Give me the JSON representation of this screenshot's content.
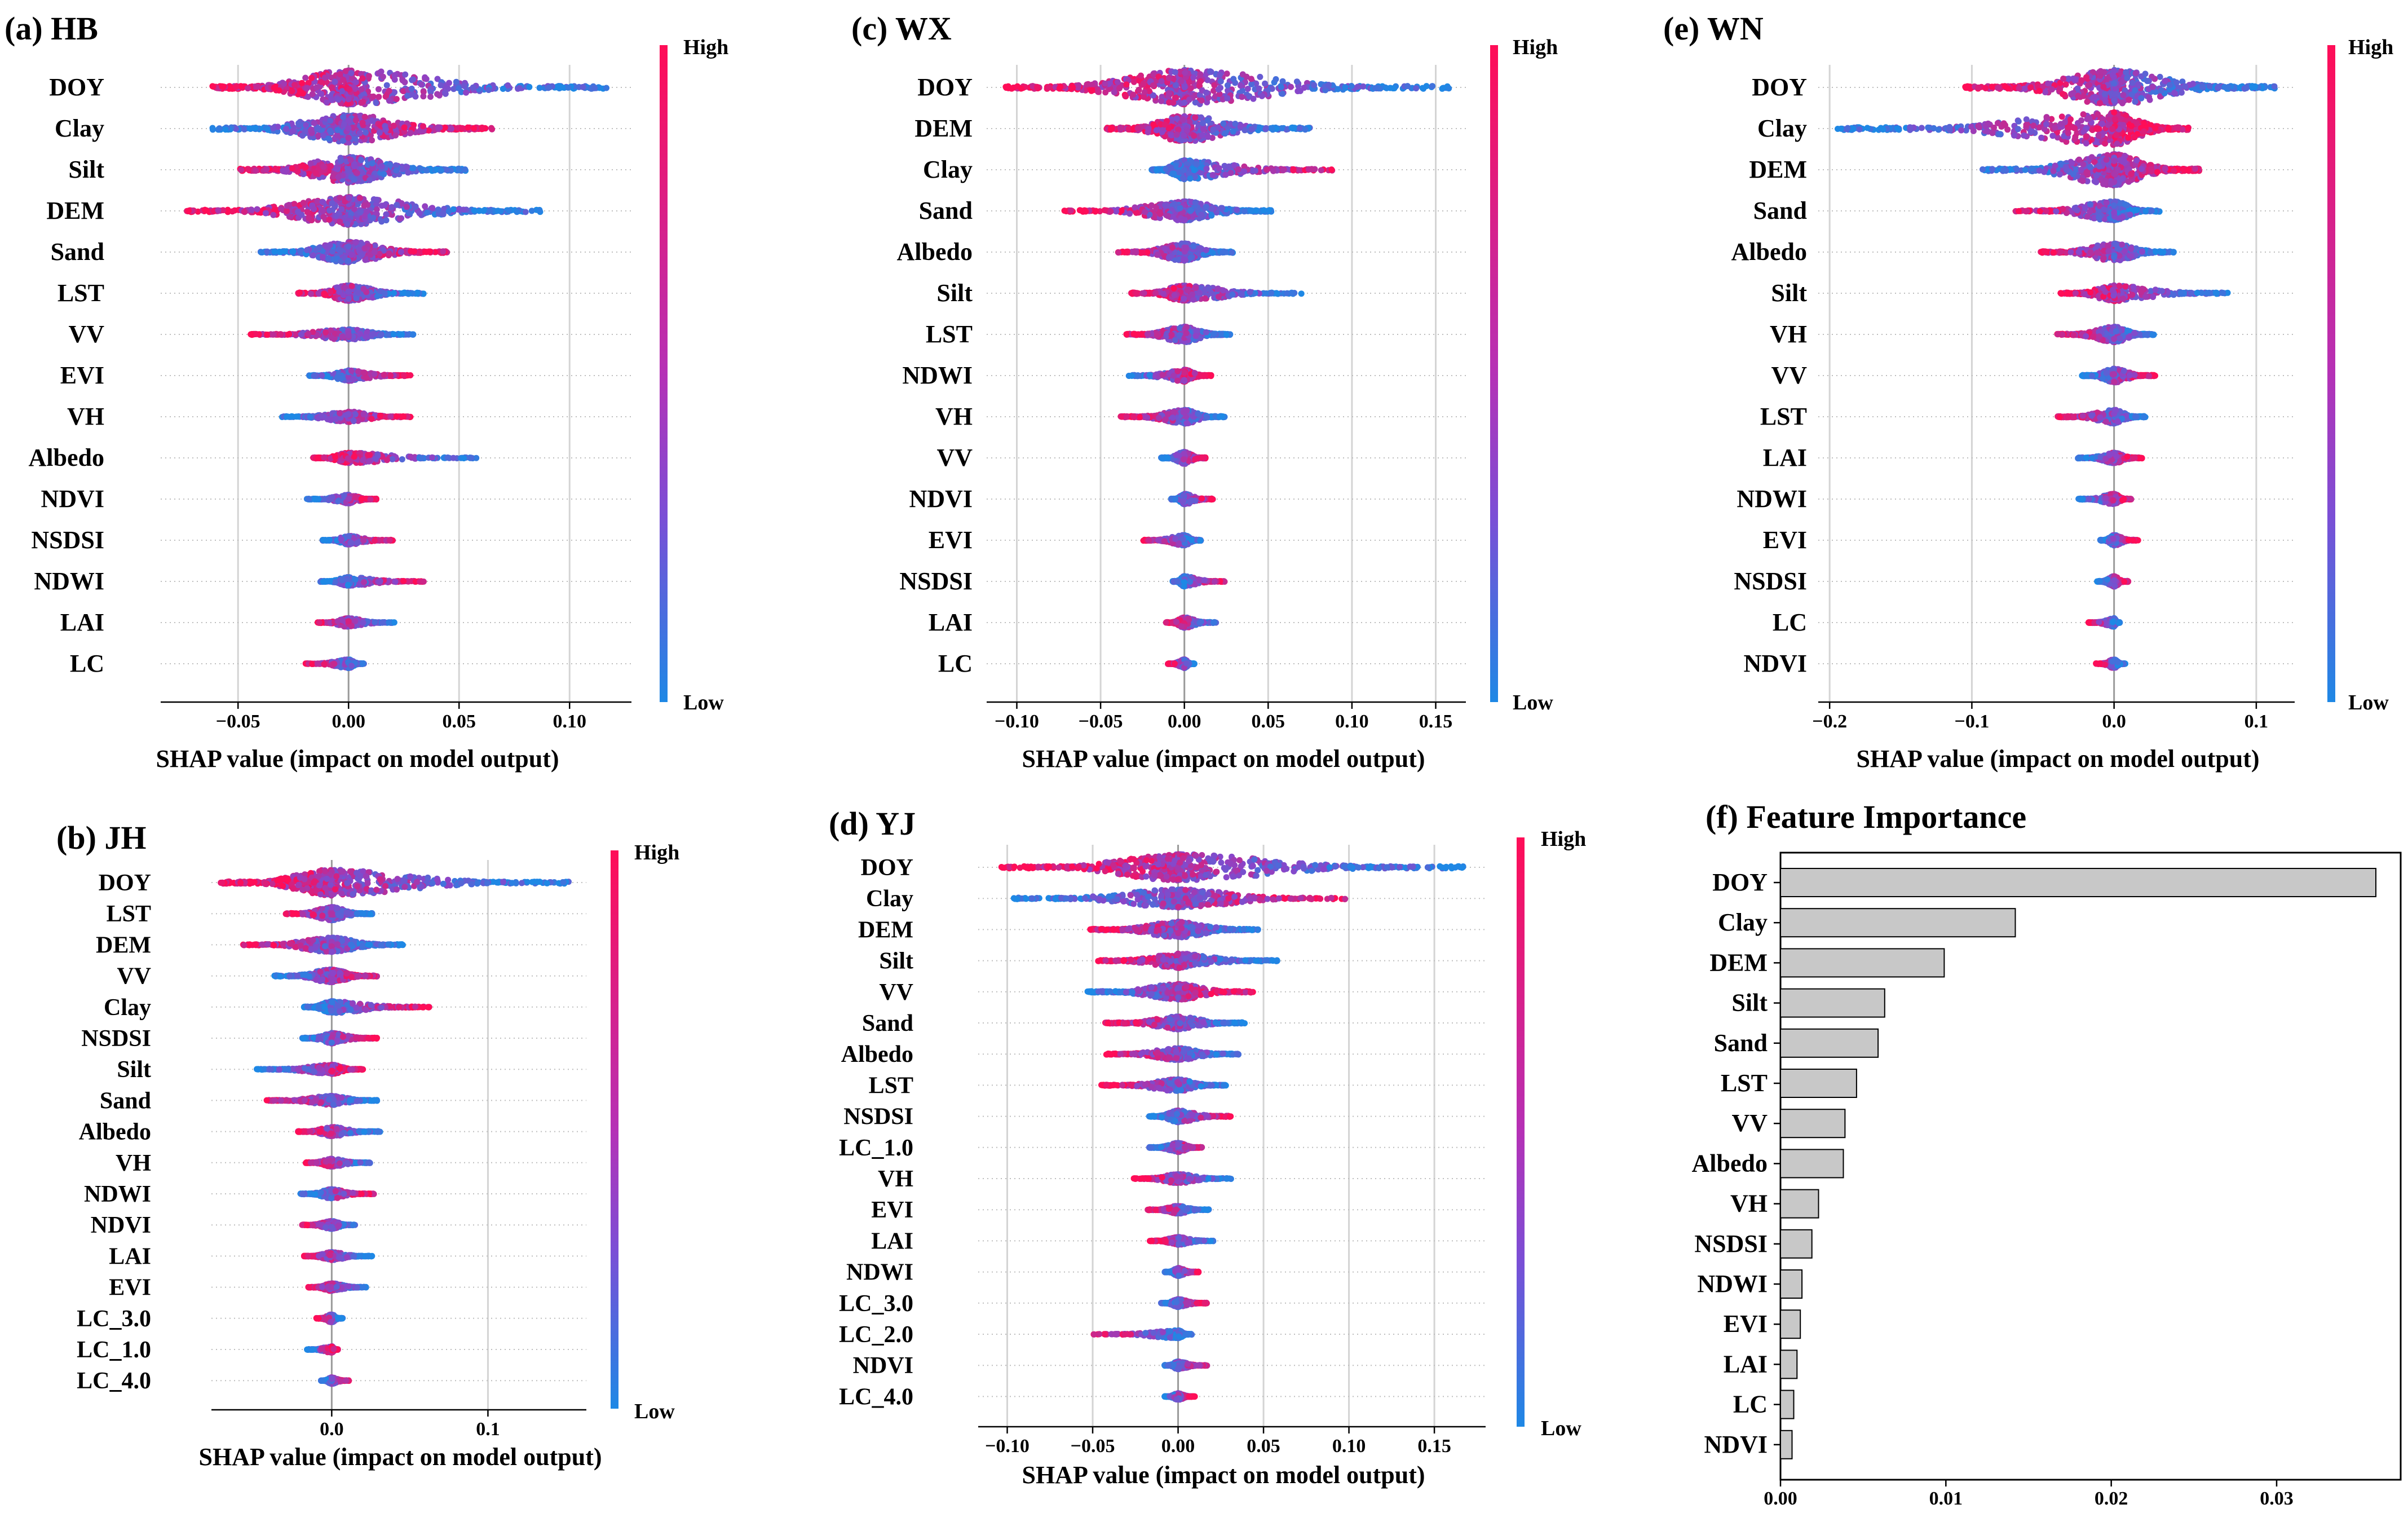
{
  "colors": {
    "high": "#ff0d57",
    "low": "#1e88e5",
    "mid": "#8a45c9",
    "bar": "#c8c8c8"
  },
  "colorbar_labels": {
    "high": "High",
    "low": "Low"
  },
  "xlabel": "SHAP value (impact on model output)",
  "chart_data": [
    {
      "type": "scatter",
      "panel": "(a) HB",
      "title": "(a) HB",
      "xlabel": "SHAP value (impact on model output)",
      "xlim": [
        -0.085,
        0.128
      ],
      "xticks": [
        -0.05,
        0.0,
        0.05,
        0.1
      ],
      "xtick_labels": [
        "−0.05",
        "0.00",
        "0.05",
        "0.10"
      ],
      "features": [
        {
          "name": "DOY",
          "min": -0.063,
          "max": 0.118,
          "width": 1.0,
          "lowSide": "right"
        },
        {
          "name": "Clay",
          "min": -0.062,
          "max": 0.065,
          "width": 0.8,
          "lowSide": "left"
        },
        {
          "name": "Silt",
          "min": -0.05,
          "max": 0.054,
          "width": 0.75,
          "lowSide": "right"
        },
        {
          "name": "DEM",
          "min": -0.075,
          "max": 0.087,
          "width": 0.8,
          "lowSide": "right"
        },
        {
          "name": "Sand",
          "min": -0.04,
          "max": 0.045,
          "width": 0.6,
          "lowSide": "left"
        },
        {
          "name": "LST",
          "min": -0.023,
          "max": 0.034,
          "width": 0.45,
          "lowSide": "right"
        },
        {
          "name": "VV",
          "min": -0.045,
          "max": 0.03,
          "width": 0.3,
          "lowSide": "right"
        },
        {
          "name": "EVI",
          "min": -0.018,
          "max": 0.028,
          "width": 0.3,
          "lowSide": "left"
        },
        {
          "name": "VH",
          "min": -0.031,
          "max": 0.028,
          "width": 0.3,
          "lowSide": "left"
        },
        {
          "name": "Albedo",
          "min": -0.016,
          "max": 0.058,
          "width": 0.3,
          "lowSide": "right"
        },
        {
          "name": "NDVI",
          "min": -0.019,
          "max": 0.013,
          "width": 0.25,
          "lowSide": "left"
        },
        {
          "name": "NSDSI",
          "min": -0.012,
          "max": 0.02,
          "width": 0.25,
          "lowSide": "left"
        },
        {
          "name": "NDWI",
          "min": -0.013,
          "max": 0.034,
          "width": 0.25,
          "lowSide": "left"
        },
        {
          "name": "LAI",
          "min": -0.014,
          "max": 0.021,
          "width": 0.25,
          "lowSide": "right"
        },
        {
          "name": "LC",
          "min": -0.02,
          "max": 0.007,
          "width": 0.25,
          "lowSide": "right"
        }
      ]
    },
    {
      "type": "scatter",
      "panel": "(c) WX",
      "title": "(c) WX",
      "xlabel": "SHAP value (impact on model output)",
      "xlim": [
        -0.118,
        0.168
      ],
      "xticks": [
        -0.1,
        -0.05,
        0.0,
        0.05,
        0.1,
        0.15
      ],
      "xtick_labels": [
        "−0.10",
        "−0.05",
        "0.00",
        "0.05",
        "0.10",
        "0.15"
      ],
      "features": [
        {
          "name": "DOY",
          "min": -0.107,
          "max": 0.158,
          "width": 1.0,
          "lowSide": "right"
        },
        {
          "name": "DEM",
          "min": -0.047,
          "max": 0.075,
          "width": 0.75,
          "lowSide": "right"
        },
        {
          "name": "Clay",
          "min": -0.02,
          "max": 0.09,
          "width": 0.55,
          "lowSide": "left"
        },
        {
          "name": "Sand",
          "min": -0.072,
          "max": 0.052,
          "width": 0.55,
          "lowSide": "right"
        },
        {
          "name": "Albedo",
          "min": -0.04,
          "max": 0.029,
          "width": 0.5,
          "lowSide": "right"
        },
        {
          "name": "Silt",
          "min": -0.032,
          "max": 0.07,
          "width": 0.45,
          "lowSide": "right"
        },
        {
          "name": "LST",
          "min": -0.035,
          "max": 0.028,
          "width": 0.45,
          "lowSide": "right"
        },
        {
          "name": "NDWI",
          "min": -0.034,
          "max": 0.016,
          "width": 0.35,
          "lowSide": "left"
        },
        {
          "name": "VH",
          "min": -0.038,
          "max": 0.024,
          "width": 0.4,
          "lowSide": "right"
        },
        {
          "name": "VV",
          "min": -0.014,
          "max": 0.013,
          "width": 0.35,
          "lowSide": "left"
        },
        {
          "name": "NDVI",
          "min": -0.008,
          "max": 0.017,
          "width": 0.3,
          "lowSide": "left"
        },
        {
          "name": "EVI",
          "min": -0.025,
          "max": 0.01,
          "width": 0.3,
          "lowSide": "right"
        },
        {
          "name": "NSDSI",
          "min": -0.007,
          "max": 0.024,
          "width": 0.3,
          "lowSide": "left"
        },
        {
          "name": "LAI",
          "min": -0.011,
          "max": 0.019,
          "width": 0.3,
          "lowSide": "right"
        },
        {
          "name": "LC",
          "min": -0.01,
          "max": 0.006,
          "width": 0.25,
          "lowSide": "right"
        }
      ]
    },
    {
      "type": "scatter",
      "panel": "(e) WN",
      "title": "(e) WN",
      "xlabel": "SHAP value (impact on model output)",
      "xlim": [
        -0.208,
        0.127
      ],
      "xticks": [
        -0.2,
        -0.1,
        0.0,
        0.1
      ],
      "xtick_labels": [
        "−0.2",
        "−0.1",
        "0.0",
        "0.1"
      ],
      "features": [
        {
          "name": "DOY",
          "min": -0.105,
          "max": 0.113,
          "width": 1.0,
          "lowSide": "right"
        },
        {
          "name": "Clay",
          "min": -0.197,
          "max": 0.053,
          "width": 0.95,
          "lowSide": "left"
        },
        {
          "name": "DEM",
          "min": -0.093,
          "max": 0.06,
          "width": 0.9,
          "lowSide": "left"
        },
        {
          "name": "Sand",
          "min": -0.07,
          "max": 0.032,
          "width": 0.55,
          "lowSide": "right"
        },
        {
          "name": "Albedo",
          "min": -0.052,
          "max": 0.043,
          "width": 0.5,
          "lowSide": "right"
        },
        {
          "name": "Silt",
          "min": -0.038,
          "max": 0.08,
          "width": 0.45,
          "lowSide": "right"
        },
        {
          "name": "VH",
          "min": -0.04,
          "max": 0.028,
          "width": 0.45,
          "lowSide": "right"
        },
        {
          "name": "VV",
          "min": -0.023,
          "max": 0.029,
          "width": 0.4,
          "lowSide": "left"
        },
        {
          "name": "LST",
          "min": -0.04,
          "max": 0.022,
          "width": 0.4,
          "lowSide": "right"
        },
        {
          "name": "LAI",
          "min": -0.026,
          "max": 0.02,
          "width": 0.3,
          "lowSide": "left"
        },
        {
          "name": "NDWI",
          "min": -0.025,
          "max": 0.012,
          "width": 0.3,
          "lowSide": "left"
        },
        {
          "name": "EVI",
          "min": -0.01,
          "max": 0.017,
          "width": 0.3,
          "lowSide": "left"
        },
        {
          "name": "NSDSI",
          "min": -0.012,
          "max": 0.01,
          "width": 0.3,
          "lowSide": "left"
        },
        {
          "name": "LC",
          "min": -0.018,
          "max": 0.004,
          "width": 0.25,
          "lowSide": "right"
        },
        {
          "name": "NDVI",
          "min": -0.013,
          "max": 0.008,
          "width": 0.25,
          "lowSide": "right"
        }
      ]
    },
    {
      "type": "scatter",
      "panel": "(b) JH",
      "title": "(b) JH",
      "xlabel": "SHAP value (impact on model output)",
      "xlim": [
        -0.077,
        0.163
      ],
      "xticks": [
        0.0,
        0.1
      ],
      "xtick_labels": [
        "0.0",
        "0.1"
      ],
      "features": [
        {
          "name": "DOY",
          "min": -0.072,
          "max": 0.152,
          "width": 1.0,
          "lowSide": "right"
        },
        {
          "name": "LST",
          "min": -0.03,
          "max": 0.026,
          "width": 0.5,
          "lowSide": "right"
        },
        {
          "name": "DEM",
          "min": -0.057,
          "max": 0.046,
          "width": 0.55,
          "lowSide": "right"
        },
        {
          "name": "VV",
          "min": -0.037,
          "max": 0.029,
          "width": 0.5,
          "lowSide": "left"
        },
        {
          "name": "Clay",
          "min": -0.018,
          "max": 0.064,
          "width": 0.45,
          "lowSide": "left"
        },
        {
          "name": "NSDSI",
          "min": -0.019,
          "max": 0.029,
          "width": 0.4,
          "lowSide": "left"
        },
        {
          "name": "Silt",
          "min": -0.048,
          "max": 0.02,
          "width": 0.35,
          "lowSide": "left"
        },
        {
          "name": "Sand",
          "min": -0.042,
          "max": 0.03,
          "width": 0.35,
          "lowSide": "right"
        },
        {
          "name": "Albedo",
          "min": -0.022,
          "max": 0.031,
          "width": 0.35,
          "lowSide": "right"
        },
        {
          "name": "VH",
          "min": -0.017,
          "max": 0.025,
          "width": 0.3,
          "lowSide": "right"
        },
        {
          "name": "NDWI",
          "min": -0.02,
          "max": 0.027,
          "width": 0.35,
          "lowSide": "left"
        },
        {
          "name": "NDVI",
          "min": -0.019,
          "max": 0.015,
          "width": 0.3,
          "lowSide": "right"
        },
        {
          "name": "LAI",
          "min": -0.018,
          "max": 0.026,
          "width": 0.3,
          "lowSide": "right"
        },
        {
          "name": "EVI",
          "min": -0.015,
          "max": 0.022,
          "width": 0.3,
          "lowSide": "right"
        },
        {
          "name": "LC_3.0",
          "min": -0.01,
          "max": 0.007,
          "width": 0.3,
          "lowSide": "right"
        },
        {
          "name": "LC_1.0",
          "min": -0.016,
          "max": 0.004,
          "width": 0.25,
          "lowSide": "left"
        },
        {
          "name": "LC_4.0",
          "min": -0.007,
          "max": 0.011,
          "width": 0.25,
          "lowSide": "left"
        }
      ]
    },
    {
      "type": "scatter",
      "panel": "(d) YJ",
      "title": "(d) YJ",
      "xlabel": "SHAP value (impact on model output)",
      "xlim": [
        -0.117,
        0.18
      ],
      "xticks": [
        -0.1,
        -0.05,
        0.0,
        0.05,
        0.1,
        0.15
      ],
      "xtick_labels": [
        "−0.10",
        "−0.05",
        "0.00",
        "0.05",
        "0.10",
        "0.15"
      ],
      "features": [
        {
          "name": "DOY",
          "min": -0.104,
          "max": 0.168,
          "width": 1.0,
          "lowSide": "right"
        },
        {
          "name": "Clay",
          "min": -0.097,
          "max": 0.098,
          "width": 0.7,
          "lowSide": "left"
        },
        {
          "name": "DEM",
          "min": -0.052,
          "max": 0.048,
          "width": 0.6,
          "lowSide": "right"
        },
        {
          "name": "Silt",
          "min": -0.048,
          "max": 0.058,
          "width": 0.55,
          "lowSide": "right"
        },
        {
          "name": "VV",
          "min": -0.053,
          "max": 0.044,
          "width": 0.6,
          "lowSide": "left"
        },
        {
          "name": "Sand",
          "min": -0.043,
          "max": 0.039,
          "width": 0.5,
          "lowSide": "right"
        },
        {
          "name": "Albedo",
          "min": -0.043,
          "max": 0.036,
          "width": 0.45,
          "lowSide": "right"
        },
        {
          "name": "LST",
          "min": -0.045,
          "max": 0.028,
          "width": 0.45,
          "lowSide": "right"
        },
        {
          "name": "NSDSI",
          "min": -0.017,
          "max": 0.031,
          "width": 0.45,
          "lowSide": "left"
        },
        {
          "name": "LC_1.0",
          "min": -0.017,
          "max": 0.014,
          "width": 0.35,
          "lowSide": "left"
        },
        {
          "name": "VH",
          "min": -0.026,
          "max": 0.031,
          "width": 0.35,
          "lowSide": "right"
        },
        {
          "name": "EVI",
          "min": -0.018,
          "max": 0.018,
          "width": 0.3,
          "lowSide": "right"
        },
        {
          "name": "LAI",
          "min": -0.017,
          "max": 0.021,
          "width": 0.3,
          "lowSide": "right"
        },
        {
          "name": "NDWI",
          "min": -0.008,
          "max": 0.012,
          "width": 0.3,
          "lowSide": "left"
        },
        {
          "name": "LC_3.0",
          "min": -0.01,
          "max": 0.017,
          "width": 0.3,
          "lowSide": "left"
        },
        {
          "name": "LC_2.0",
          "min": -0.05,
          "max": 0.008,
          "width": 0.3,
          "lowSide": "right"
        },
        {
          "name": "NDVI",
          "min": -0.008,
          "max": 0.017,
          "width": 0.3,
          "lowSide": "left"
        },
        {
          "name": "LC_4.0",
          "min": -0.008,
          "max": 0.01,
          "width": 0.25,
          "lowSide": "left"
        }
      ]
    },
    {
      "type": "bar",
      "orientation": "horizontal",
      "panel": "(f) Feature Importance",
      "title": "(f) Feature Importance",
      "categories": [
        "DOY",
        "Clay",
        "DEM",
        "Silt",
        "Sand",
        "LST",
        "VV",
        "Albedo",
        "VH",
        "NSDSI",
        "NDWI",
        "EVI",
        "LAI",
        "LC",
        "NDVI"
      ],
      "values": [
        0.036,
        0.0142,
        0.0099,
        0.0063,
        0.0059,
        0.0046,
        0.0039,
        0.0038,
        0.0023,
        0.0019,
        0.0013,
        0.0012,
        0.001,
        0.0008,
        0.0007
      ],
      "xlim": [
        0.0,
        0.0375
      ],
      "xticks": [
        0.0,
        0.01,
        0.02,
        0.03
      ],
      "xtick_labels": [
        "0.00",
        "0.01",
        "0.02",
        "0.03"
      ]
    }
  ]
}
